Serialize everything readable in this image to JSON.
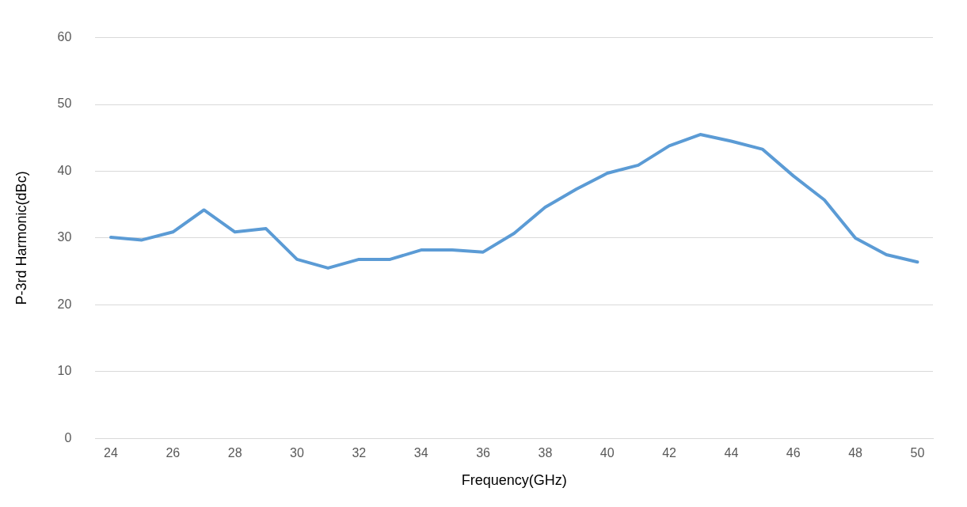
{
  "chart_data": {
    "type": "line",
    "xlabel": "Frequency(GHz)",
    "ylabel": "P-3rd Harmonic(dBc)",
    "categories": [
      "24",
      null,
      "26",
      null,
      "28",
      null,
      "30",
      null,
      "32",
      null,
      "34",
      null,
      "36",
      null,
      "38",
      null,
      "40",
      null,
      "42",
      null,
      "44",
      null,
      "46",
      null,
      "48",
      null,
      "50"
    ],
    "series": [
      {
        "color": "#5b9bd5",
        "values": [
          30.1,
          29.7,
          30.9,
          34.2,
          30.9,
          31.4,
          26.8,
          25.5,
          26.8,
          26.8,
          28.2,
          28.2,
          27.9,
          30.7,
          34.6,
          37.3,
          39.7,
          40.9,
          43.8,
          45.5,
          44.5,
          43.3,
          39.3,
          35.7,
          30.0,
          27.5,
          26.4
        ]
      }
    ],
    "ylim": [
      0,
      60
    ],
    "yticks": [
      0,
      10,
      20,
      30,
      40,
      50,
      60
    ],
    "grid": "y",
    "legend": false,
    "marker": "none",
    "line_style": "solid"
  }
}
